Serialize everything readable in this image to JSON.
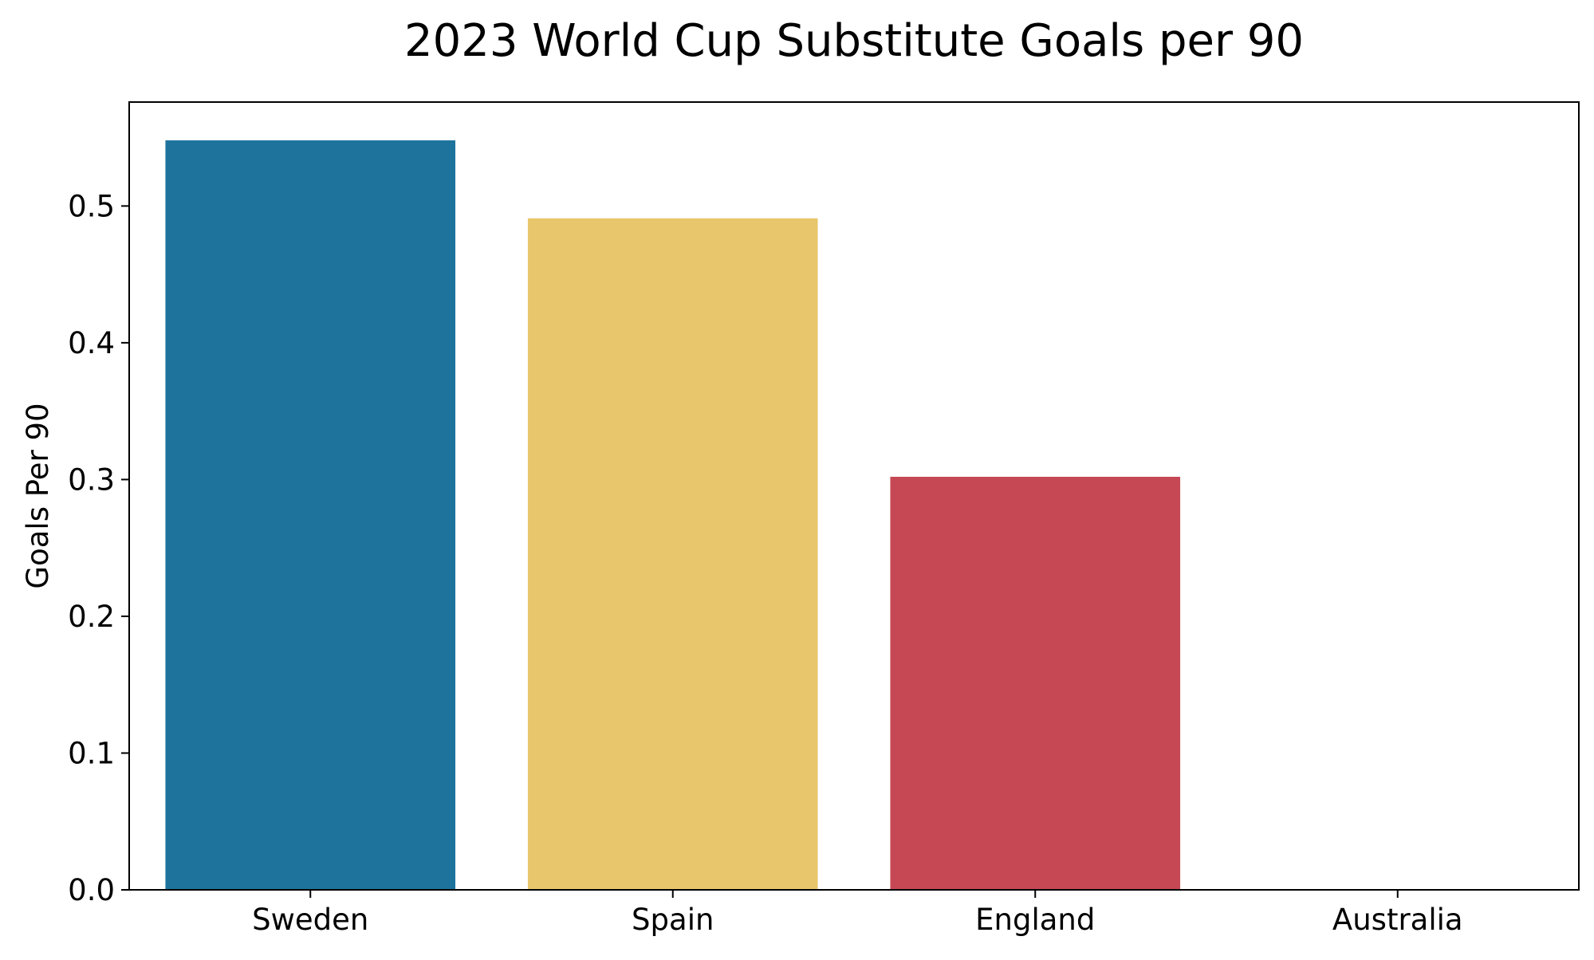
{
  "chart_data": {
    "type": "bar",
    "title": "2023 World Cup Substitute Goals per 90",
    "xlabel": "",
    "ylabel": "Goals Per 90",
    "categories": [
      "Sweden",
      "Spain",
      "England",
      "Australia"
    ],
    "values": [
      0.548,
      0.491,
      0.302,
      0.0
    ],
    "colors": [
      "#1d739c",
      "#e8c66b",
      "#c54854",
      "#c54854"
    ],
    "ylim": [
      0,
      0.576
    ],
    "yticks": [
      0.0,
      0.1,
      0.2,
      0.3,
      0.4,
      0.5
    ],
    "ytick_labels": [
      "0.0",
      "0.1",
      "0.2",
      "0.3",
      "0.4",
      "0.5"
    ],
    "grid": false,
    "legend": "none"
  }
}
